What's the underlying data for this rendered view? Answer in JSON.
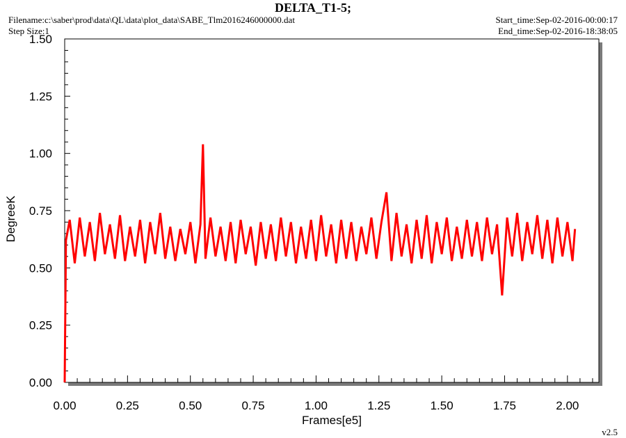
{
  "header": {
    "filename": "Filename:c:\\saber\\prod\\data\\QL\\data\\plot_data\\SABE_Tlm2016246000000.dat",
    "step_size": "Step Size:1",
    "start_time": "Start_time:Sep-02-2016-00:00:17",
    "end_time": "End_time:Sep-02-2016-18:38:05",
    "version": "v2.5"
  },
  "chart_data": {
    "type": "line",
    "title": "DELTA_T1-5;",
    "x_label": "Frames[e5]",
    "y_label": "DegreeK",
    "xlim": [
      0,
      2.125
    ],
    "ylim": [
      0,
      1.5
    ],
    "xticks": [
      {
        "value": 0,
        "label": "0.00"
      },
      {
        "value": 0.25,
        "label": "0.25"
      },
      {
        "value": 0.5,
        "label": "0.50"
      },
      {
        "value": 0.75,
        "label": "0.75"
      },
      {
        "value": 1,
        "label": "1.00"
      },
      {
        "value": 1.25,
        "label": "1.25"
      },
      {
        "value": 1.5,
        "label": "1.50"
      },
      {
        "value": 1.75,
        "label": "1.75"
      },
      {
        "value": 2,
        "label": "2.00"
      }
    ],
    "xminorticks": [
      0.05,
      0.1,
      0.15,
      0.2,
      0.3,
      0.35,
      0.4,
      0.45,
      0.55,
      0.6,
      0.65,
      0.7,
      0.8,
      0.85,
      0.9,
      0.95,
      1.05,
      1.1,
      1.15,
      1.2,
      1.3,
      1.35,
      1.4,
      1.45,
      1.55,
      1.6,
      1.65,
      1.7,
      1.8,
      1.85,
      1.9,
      1.95,
      2.05,
      2.1
    ],
    "yticks": [
      {
        "value": 0,
        "label": "0.00"
      },
      {
        "value": 0.25,
        "label": "0.25"
      },
      {
        "value": 0.5,
        "label": "0.50"
      },
      {
        "value": 0.75,
        "label": "0.75"
      },
      {
        "value": 1,
        "label": "1.00"
      },
      {
        "value": 1.25,
        "label": "1.25"
      },
      {
        "value": 1.5,
        "label": "1.50"
      }
    ],
    "yminorticks": [
      0.05,
      0.1,
      0.15,
      0.2,
      0.3,
      0.35,
      0.4,
      0.45,
      0.55,
      0.6,
      0.65,
      0.7,
      0.8,
      0.85,
      0.9,
      0.95,
      1.05,
      1.1,
      1.15,
      1.2,
      1.3,
      1.35,
      1.4,
      1.45
    ],
    "series": [
      {
        "color": "#ff0000",
        "x": [
          0,
          0.005,
          0.02,
          0.04,
          0.06,
          0.08,
          0.1,
          0.12,
          0.14,
          0.16,
          0.18,
          0.2,
          0.22,
          0.24,
          0.26,
          0.28,
          0.3,
          0.32,
          0.34,
          0.36,
          0.38,
          0.4,
          0.42,
          0.44,
          0.46,
          0.48,
          0.5,
          0.52,
          0.54,
          0.55,
          0.56,
          0.58,
          0.6,
          0.62,
          0.64,
          0.66,
          0.68,
          0.7,
          0.72,
          0.74,
          0.76,
          0.78,
          0.8,
          0.82,
          0.84,
          0.86,
          0.88,
          0.9,
          0.92,
          0.94,
          0.96,
          0.98,
          1,
          1.02,
          1.04,
          1.06,
          1.08,
          1.1,
          1.12,
          1.14,
          1.16,
          1.18,
          1.2,
          1.22,
          1.24,
          1.26,
          1.28,
          1.3,
          1.32,
          1.34,
          1.36,
          1.38,
          1.4,
          1.42,
          1.44,
          1.46,
          1.48,
          1.5,
          1.52,
          1.54,
          1.56,
          1.58,
          1.6,
          1.62,
          1.64,
          1.66,
          1.68,
          1.7,
          1.72,
          1.74,
          1.76,
          1.78,
          1.8,
          1.82,
          1.84,
          1.86,
          1.88,
          1.9,
          1.92,
          1.94,
          1.96,
          1.98,
          2,
          2.02,
          2.03
        ],
        "values": [
          0,
          0.62,
          0.71,
          0.52,
          0.72,
          0.55,
          0.7,
          0.53,
          0.74,
          0.56,
          0.69,
          0.54,
          0.73,
          0.53,
          0.68,
          0.55,
          0.71,
          0.52,
          0.7,
          0.56,
          0.74,
          0.54,
          0.68,
          0.53,
          0.67,
          0.56,
          0.7,
          0.52,
          0.69,
          1.04,
          0.54,
          0.72,
          0.55,
          0.68,
          0.53,
          0.7,
          0.52,
          0.71,
          0.56,
          0.68,
          0.51,
          0.7,
          0.54,
          0.69,
          0.53,
          0.72,
          0.55,
          0.7,
          0.52,
          0.68,
          0.54,
          0.71,
          0.53,
          0.73,
          0.55,
          0.69,
          0.52,
          0.71,
          0.54,
          0.7,
          0.53,
          0.68,
          0.56,
          0.72,
          0.54,
          0.7,
          0.83,
          0.53,
          0.74,
          0.55,
          0.69,
          0.52,
          0.71,
          0.54,
          0.73,
          0.52,
          0.7,
          0.56,
          0.72,
          0.53,
          0.68,
          0.54,
          0.71,
          0.55,
          0.7,
          0.53,
          0.72,
          0.56,
          0.69,
          0.38,
          0.72,
          0.55,
          0.74,
          0.53,
          0.7,
          0.56,
          0.73,
          0.54,
          0.71,
          0.52,
          0.72,
          0.55,
          0.7,
          0.53,
          0.67
        ]
      }
    ]
  }
}
